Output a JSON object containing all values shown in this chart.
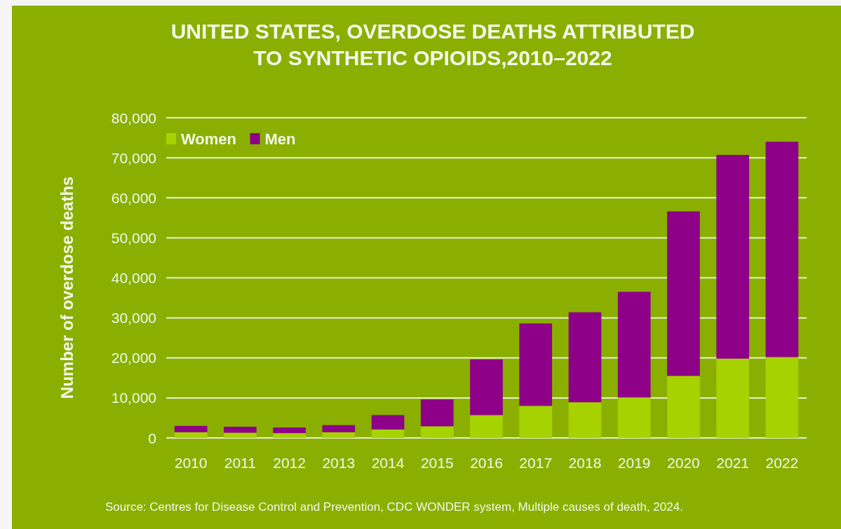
{
  "chart_data": {
    "type": "bar",
    "title": "UNITED STATES, OVERDOSE DEATHS ATTRIBUTED TO SYNTHETIC OPIOIDS,2010–2022",
    "ylabel": "Number of overdose deaths",
    "annotations": [
      "Source: Centres for Disease Control and Prevention, CDC WONDER system, Multiple causes of death, 2024."
    ],
    "categories": [
      "2010",
      "2011",
      "2012",
      "2013",
      "2014",
      "2015",
      "2016",
      "2017",
      "2018",
      "2019",
      "2020",
      "2021",
      "2022"
    ],
    "series": [
      {
        "name": "Women",
        "color": "#a6d200",
        "values": [
          1400,
          1300,
          1200,
          1400,
          2100,
          2900,
          5700,
          8000,
          8900,
          10100,
          15500,
          19800,
          20200
        ]
      },
      {
        "name": "Men",
        "color": "#8f0088",
        "values": [
          1600,
          1500,
          1400,
          1800,
          3600,
          6700,
          13900,
          20600,
          22500,
          26400,
          41100,
          50900,
          53800
        ]
      }
    ],
    "stacked": true,
    "ylim": [
      0,
      80000
    ],
    "yticks": [
      0,
      {
        "value": 10000,
        "label": "10,000"
      },
      {
        "value": 20000,
        "label": "20,000"
      },
      {
        "value": 30000,
        "label": "30,000"
      },
      {
        "value": 40000,
        "label": "40,000"
      },
      {
        "value": 50000,
        "label": "50,000"
      },
      {
        "value": 60000,
        "label": "60,000"
      },
      {
        "value": 70000,
        "label": "70,000"
      },
      {
        "value": 80000,
        "label": "80,000"
      }
    ],
    "grid": "y",
    "legend": "top left"
  }
}
